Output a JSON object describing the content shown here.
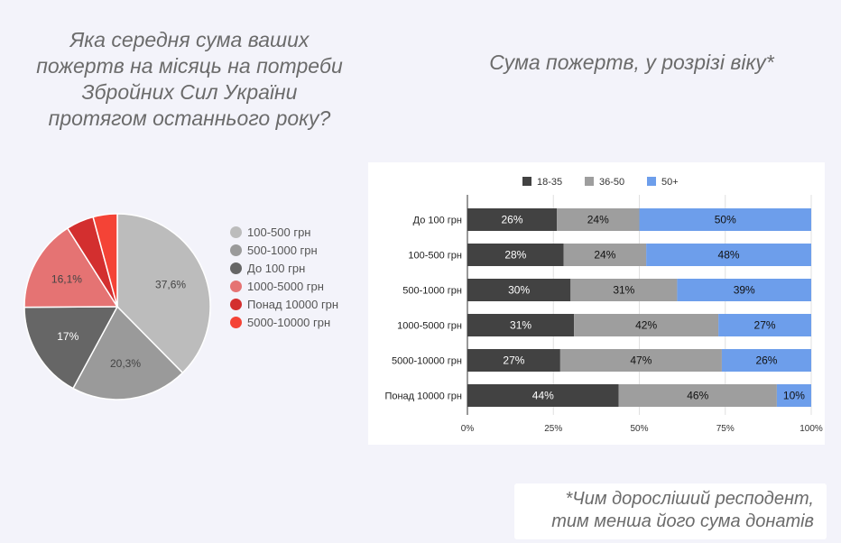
{
  "left_title": {
    "lines": [
      "Яка середня сума ваших",
      "пожертв на місяць на потреби",
      "Збройних Сил України",
      "протягом останнього року?"
    ]
  },
  "right_title": "Сума пожертв, у розрізі віку*",
  "note": {
    "line1": "*Чим дорослiший респодент,",
    "line2": "тим менша його сума донатів"
  },
  "chart_data": [
    {
      "type": "pie",
      "slices": [
        {
          "label": "100-500 грн",
          "value": 37.6,
          "value_label": "37,6%",
          "color": "#bcbcbc"
        },
        {
          "label": "500-1000 грн",
          "value": 20.3,
          "value_label": "20,3%",
          "color": "#9a9a9a"
        },
        {
          "label": "До 100 грн",
          "value": 17.0,
          "value_label": "17%",
          "color": "#666666"
        },
        {
          "label": "1000-5000 грн",
          "value": 16.1,
          "value_label": "16,1%",
          "color": "#e57373"
        },
        {
          "label": "Понад 10000 грн",
          "value": 4.8,
          "value_label": "",
          "color": "#d32f2f"
        },
        {
          "label": "5000-10000 грн",
          "value": 4.2,
          "value_label": "",
          "color": "#f44336"
        }
      ],
      "legend_position": "right"
    },
    {
      "type": "bar",
      "orientation": "horizontal",
      "stacked": "percent",
      "categories": [
        "До 100 грн",
        "100-500 грн",
        "500-1000 грн",
        "1000-5000 грн",
        "5000-10000 грн",
        "Понад 10000 грн"
      ],
      "series": [
        {
          "name": "18-35",
          "color": "#424242",
          "values": [
            26,
            28,
            30,
            31,
            27,
            44
          ]
        },
        {
          "name": "36-50",
          "color": "#9e9e9e",
          "values": [
            24,
            24,
            31,
            42,
            47,
            46
          ]
        },
        {
          "name": "50+",
          "color": "#6d9eeb",
          "values": [
            50,
            48,
            39,
            27,
            26,
            10
          ]
        }
      ],
      "xticks": [
        "0%",
        "25%",
        "50%",
        "75%",
        "100%"
      ],
      "xlim": [
        0,
        100
      ],
      "legend_position": "top",
      "grid": true
    }
  ]
}
